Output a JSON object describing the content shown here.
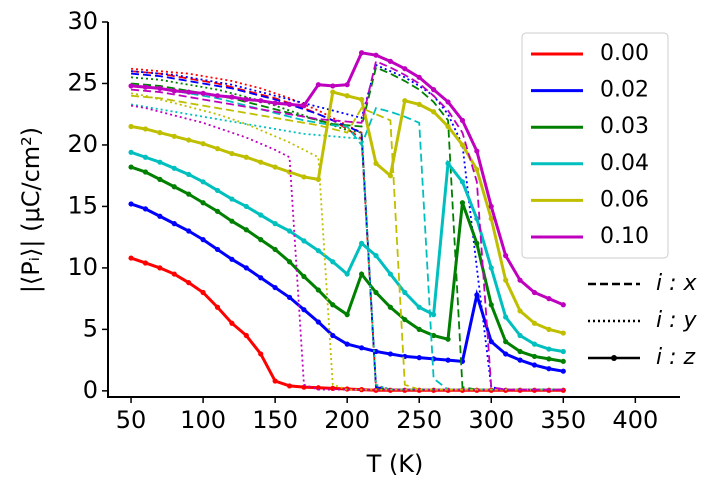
{
  "chart_data": {
    "type": "line",
    "xlabel": "T (K)",
    "ylabel": "|⟨Pᵢ⟩| (μC/cm²)",
    "x": [
      50,
      60,
      70,
      80,
      90,
      100,
      110,
      120,
      130,
      140,
      150,
      160,
      170,
      180,
      190,
      200,
      210,
      220,
      230,
      240,
      250,
      260,
      270,
      280,
      290,
      300,
      310,
      320,
      330,
      340,
      350
    ],
    "xlim": [
      34,
      431
    ],
    "ylim": [
      -0.5,
      30
    ],
    "xticks": [
      50,
      100,
      150,
      200,
      250,
      300,
      350,
      400
    ],
    "yticks": [
      0,
      5,
      10,
      15,
      20,
      25,
      30
    ],
    "components": [
      {
        "label": "i : x",
        "style": "dashed",
        "marker": false
      },
      {
        "label": "i : y",
        "style": "dotted",
        "marker": false
      },
      {
        "label": "i : z",
        "style": "solid",
        "marker": true
      }
    ],
    "groups": [
      {
        "name": "0.00",
        "color": "#ff0000",
        "lines": [
          [
            26,
            25.9,
            25.8,
            25.6,
            25.4,
            25.2,
            25,
            24.7,
            24.4,
            24.1,
            23.8,
            23.4,
            23,
            22.5,
            22,
            21.3,
            20.5,
            0.3,
            0.1,
            0.1,
            0.1,
            0.1,
            0.1,
            0.1,
            0.1,
            0.1,
            0.1,
            0.1,
            0.1,
            0.1,
            0.1
          ],
          [
            26.2,
            26.1,
            26,
            25.9,
            25.8,
            25.6,
            25.4,
            25.2,
            24.9,
            24.6,
            24.2,
            23.8,
            23.3,
            22.8,
            22.2,
            21.6,
            21,
            0.4,
            0.15,
            0.1,
            0.1,
            0.1,
            0.1,
            0.1,
            0.1,
            0.1,
            0.1,
            0.1,
            0.1,
            0.1,
            0.1
          ],
          [
            10.8,
            10.4,
            10,
            9.5,
            8.8,
            8,
            6.8,
            5.5,
            4.5,
            3,
            0.8,
            0.4,
            0.3,
            0.25,
            0.2,
            0.15,
            0.1,
            0.05,
            0.05,
            0.05,
            0.05,
            0.05,
            0.05,
            0.05,
            0.05,
            0.05,
            0.05,
            0.05,
            0.05,
            0.05,
            0.05
          ]
        ]
      },
      {
        "name": "0.02",
        "color": "#0000ff",
        "lines": [
          [
            25.8,
            25.7,
            25.6,
            25.4,
            25.2,
            25,
            24.8,
            24.6,
            24.3,
            24,
            23.7,
            23.3,
            22.9,
            22.5,
            22,
            21.5,
            21,
            0.3,
            0.1,
            0.1,
            0.1,
            0.1,
            0.1,
            0.1,
            0.1,
            0.1,
            0.1,
            0.1,
            0.1,
            0.1,
            0.1
          ],
          [
            26,
            25.9,
            25.8,
            25.7,
            25.5,
            25.3,
            25.1,
            24.9,
            24.6,
            24.3,
            24,
            23.7,
            23.4,
            23.1,
            22.8,
            22.5,
            22.2,
            26.5,
            26,
            25.5,
            24.8,
            24,
            22.5,
            20,
            10,
            0.3,
            0.1,
            0.1,
            0.1,
            0.1,
            0.1
          ],
          [
            15.2,
            14.8,
            14.2,
            13.6,
            13,
            12.3,
            11.5,
            10.7,
            10,
            9.2,
            8.4,
            7.6,
            6.6,
            5.6,
            4.5,
            3.8,
            3.5,
            3.2,
            3,
            2.8,
            2.7,
            2.6,
            2.5,
            2.4,
            7.8,
            4,
            3,
            2.5,
            2.1,
            1.8,
            1.6
          ]
        ]
      },
      {
        "name": "0.03",
        "color": "#008000",
        "lines": [
          [
            25,
            24.9,
            24.8,
            24.6,
            24.4,
            24.2,
            24,
            23.8,
            23.5,
            23.2,
            22.9,
            22.6,
            22.3,
            22,
            21.7,
            21.6,
            21.5,
            26.3,
            25.8,
            25.2,
            24.5,
            23.5,
            22,
            0.3,
            0.1,
            0.1,
            0.1,
            0.1,
            0.1,
            0.1,
            0.1
          ],
          [
            25.5,
            25.4,
            25.3,
            25.1,
            24.9,
            24.7,
            24.5,
            24.2,
            23.9,
            23.6,
            23.2,
            22.8,
            22.4,
            22,
            21.6,
            21.2,
            21,
            0.2,
            0.1,
            0.1,
            0.1,
            0.1,
            0.1,
            0.1,
            0.1,
            0.1,
            0.1,
            0.1,
            0.1,
            0.1,
            0.1
          ],
          [
            18.2,
            17.8,
            17.2,
            16.6,
            16,
            15.3,
            14.6,
            13.8,
            13.1,
            12.3,
            11.5,
            10.5,
            9.3,
            8.2,
            7,
            6.2,
            9.5,
            8,
            6.8,
            5.8,
            5,
            4.5,
            4.2,
            15.3,
            12,
            7,
            4,
            3.2,
            2.8,
            2.6,
            2.4
          ]
        ]
      },
      {
        "name": "0.04",
        "color": "#00bfbf",
        "lines": [
          [
            24.8,
            24.7,
            24.6,
            24.4,
            24.2,
            24,
            23.8,
            23.5,
            23.2,
            22.9,
            22.6,
            22.3,
            22,
            21.8,
            21.6,
            21.5,
            20,
            23,
            22.7,
            22.3,
            21.8,
            1,
            0.1,
            0.1,
            0.1,
            0.1,
            0.1,
            0.1,
            0.1,
            0.1,
            0.1
          ],
          [
            23.3,
            23.1,
            22.9,
            22.7,
            22.5,
            22.3,
            22.1,
            21.9,
            21.7,
            21.5,
            21.3,
            21.1,
            20.9,
            20.8,
            20.7,
            20.6,
            20.5,
            0.5,
            0.1,
            0.1,
            0.1,
            0.1,
            0.1,
            0.1,
            0.1,
            0.1,
            0.1,
            0.1,
            0.1,
            0.1,
            0.1
          ],
          [
            19.4,
            19,
            18.6,
            18.1,
            17.6,
            17,
            16.3,
            15.6,
            15,
            14.3,
            13.6,
            13,
            12.2,
            11.4,
            10.5,
            9.5,
            12,
            11,
            9.5,
            8,
            6.8,
            6.2,
            18.5,
            17,
            14,
            10,
            6,
            4.5,
            3.8,
            3.4,
            3.2
          ]
        ]
      },
      {
        "name": "0.06",
        "color": "#bfbf00",
        "lines": [
          [
            24,
            23.9,
            23.8,
            23.6,
            23.4,
            23.2,
            23,
            22.8,
            22.6,
            22.4,
            22.2,
            22,
            21.8,
            21.6,
            21.3,
            21,
            23,
            22.5,
            22,
            0.5,
            0.1,
            0.1,
            0.1,
            0.1,
            0.1,
            0.1,
            0.1,
            0.1,
            0.1,
            0.1,
            0.1
          ],
          [
            24.2,
            24,
            23.7,
            23.4,
            23.1,
            22.8,
            22.5,
            22.1,
            21.7,
            21.2,
            20.7,
            20.2,
            19.6,
            19,
            0.5,
            0.1,
            0.1,
            0.1,
            0.1,
            0.1,
            0.1,
            0.1,
            0.1,
            0.1,
            0.1,
            0.1,
            0.1,
            0.1,
            0.1,
            0.1,
            0.1
          ],
          [
            21.5,
            21.3,
            21,
            20.7,
            20.4,
            20.1,
            19.7,
            19.3,
            19,
            18.6,
            18.2,
            17.8,
            17.4,
            17.2,
            24.3,
            24,
            23.7,
            18.5,
            17.5,
            23.6,
            23.3,
            22.7,
            21.5,
            20,
            18,
            14,
            9,
            6.5,
            5.5,
            5,
            4.7
          ]
        ]
      },
      {
        "name": "0.10",
        "color": "#bf00bf",
        "lines": [
          [
            24.5,
            24.4,
            24.3,
            24.1,
            23.9,
            23.7,
            23.5,
            23.3,
            23.1,
            22.9,
            22.7,
            22.5,
            22.3,
            22.1,
            22,
            21.9,
            21.8,
            26.8,
            26.3,
            25.7,
            25,
            24,
            22.8,
            21,
            17,
            0.3,
            0.1,
            0.1,
            0.1,
            0.1,
            0.1
          ],
          [
            23.2,
            23,
            22.7,
            22.4,
            22.1,
            21.8,
            21.4,
            21,
            20.6,
            20.1,
            19.6,
            19,
            0.5,
            0.1,
            0.1,
            0.1,
            0.1,
            0.1,
            0.1,
            0.1,
            0.1,
            0.1,
            0.1,
            0.1,
            0.1,
            0.1,
            0.1,
            0.1,
            0.1,
            0.1,
            0.1
          ],
          [
            24.8,
            24.7,
            24.6,
            24.4,
            24.3,
            24.2,
            24,
            23.9,
            23.7,
            23.6,
            23.4,
            23.3,
            23.2,
            24.9,
            24.8,
            24.9,
            27.5,
            27.3,
            26.8,
            26.2,
            25.5,
            24.5,
            23.5,
            22,
            19.5,
            15,
            11,
            9,
            8,
            7.5,
            7
          ]
        ]
      }
    ]
  }
}
